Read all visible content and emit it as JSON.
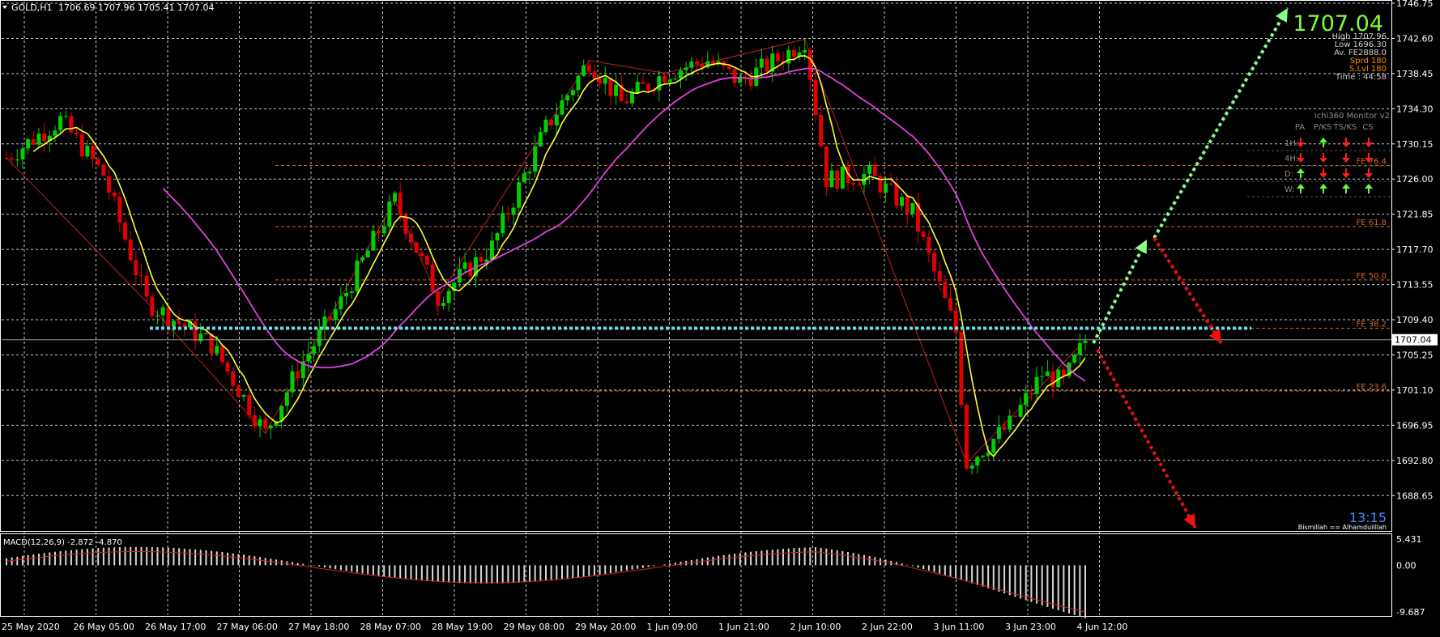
{
  "header": {
    "symbol": "GOLD,H1",
    "ohlc": "1706.69 1707.96 1705.41 1707.04"
  },
  "price_panel": {
    "big_price": "1707.04",
    "info_lines": [
      "High 1707.96",
      "Low 1696.30",
      "Av. FE2888.0",
      "Sprd 180",
      "S.Lvl 180",
      "Time : 44:58"
    ],
    "current_price_label": "1707.04",
    "clock": "13:15",
    "footer_note": "Bismillah == Alhamdulillah",
    "monitor_title": "ichi360 Monitor v2",
    "monitor_headers": [
      "PA",
      "P/KS",
      "TS/KS",
      "CS"
    ],
    "monitor_rows": [
      {
        "label": "1H:",
        "arrows": [
          "down",
          "up",
          "down",
          "down"
        ]
      },
      {
        "label": "4H:",
        "arrows": [
          "down",
          "down",
          "down",
          "down"
        ]
      },
      {
        "label": "D:",
        "arrows": [
          "up",
          "down",
          "down",
          "down"
        ]
      },
      {
        "label": "W:",
        "arrows": [
          "up",
          "up",
          "up",
          "up"
        ]
      }
    ],
    "fe_levels": [
      {
        "label": "FE 76.4",
        "price": 1727.6
      },
      {
        "label": "FE 61.8",
        "price": 1720.4
      },
      {
        "label": "FE 50.0",
        "price": 1714.1
      },
      {
        "label": "FE 38.2",
        "price": 1708.4
      },
      {
        "label": "FE 23.6",
        "price": 1701.0
      }
    ]
  },
  "macd": {
    "label": "MACD(12,26,9) -2.872 -4.870",
    "axis_labels": [
      "5.431",
      "0.00",
      "-9.687"
    ],
    "range": [
      -9.687,
      5.431
    ]
  },
  "chart_data": {
    "type": "candlestick",
    "title": "GOLD,H1",
    "y_axis_labels": [
      "1746.75",
      "1742.60",
      "1738.45",
      "1734.30",
      "1730.15",
      "1726.00",
      "1721.85",
      "1717.70",
      "1713.55",
      "1709.40",
      "1705.25",
      "1701.10",
      "1696.95",
      "1692.80",
      "1688.65"
    ],
    "ylim": [
      1686.0,
      1746.75
    ],
    "x_tick_labels": [
      "25 May 2020",
      "26 May 05:00",
      "26 May 17:00",
      "27 May 06:00",
      "27 May 18:00",
      "28 May 07:00",
      "28 May 19:00",
      "29 May 08:00",
      "29 May 20:00",
      "1 Jun 09:00",
      "1 Jun 21:00",
      "2 Jun 10:00",
      "2 Jun 22:00",
      "3 Jun 11:00",
      "3 Jun 23:00",
      "4 Jun 12:00"
    ],
    "close_path": [
      {
        "bar": 0,
        "price": 1728.5
      },
      {
        "bar": 10,
        "price": 1733.0
      },
      {
        "bar": 18,
        "price": 1726.5
      },
      {
        "bar": 26,
        "price": 1711.5
      },
      {
        "bar": 38,
        "price": 1706.5
      },
      {
        "bar": 48,
        "price": 1696.0
      },
      {
        "bar": 54,
        "price": 1703.5
      },
      {
        "bar": 62,
        "price": 1711.5
      },
      {
        "bar": 72,
        "price": 1723.5
      },
      {
        "bar": 80,
        "price": 1712.0
      },
      {
        "bar": 90,
        "price": 1718.0
      },
      {
        "bar": 100,
        "price": 1732.0
      },
      {
        "bar": 108,
        "price": 1740.0
      },
      {
        "bar": 114,
        "price": 1735.0
      },
      {
        "bar": 122,
        "price": 1738.5
      },
      {
        "bar": 130,
        "price": 1740.0
      },
      {
        "bar": 136,
        "price": 1737.5
      },
      {
        "bar": 144,
        "price": 1740.5
      },
      {
        "bar": 148,
        "price": 1742.5
      },
      {
        "bar": 152,
        "price": 1726.0
      },
      {
        "bar": 160,
        "price": 1726.5
      },
      {
        "bar": 168,
        "price": 1722.0
      },
      {
        "bar": 172,
        "price": 1715.0
      },
      {
        "bar": 176,
        "price": 1708.0
      },
      {
        "bar": 178,
        "price": 1692.5
      },
      {
        "bar": 186,
        "price": 1697.0
      },
      {
        "bar": 192,
        "price": 1703.0
      },
      {
        "bar": 196,
        "price": 1702.0
      },
      {
        "bar": 200,
        "price": 1707.0
      }
    ],
    "series": [
      {
        "name": "MA fast",
        "color": "#ffff33"
      },
      {
        "name": "MA slow",
        "color": "#e040e0"
      }
    ],
    "horizontal_line_price": 1708.4,
    "grid": true
  },
  "colors": {
    "bull": "#00d000",
    "bear": "#e00000",
    "fast_ma": "#ffff33",
    "slow_ma": "#e040e0",
    "dotted_level": "#66ddee",
    "arrow_up": "#88ff88",
    "arrow_down": "#ee1111"
  }
}
